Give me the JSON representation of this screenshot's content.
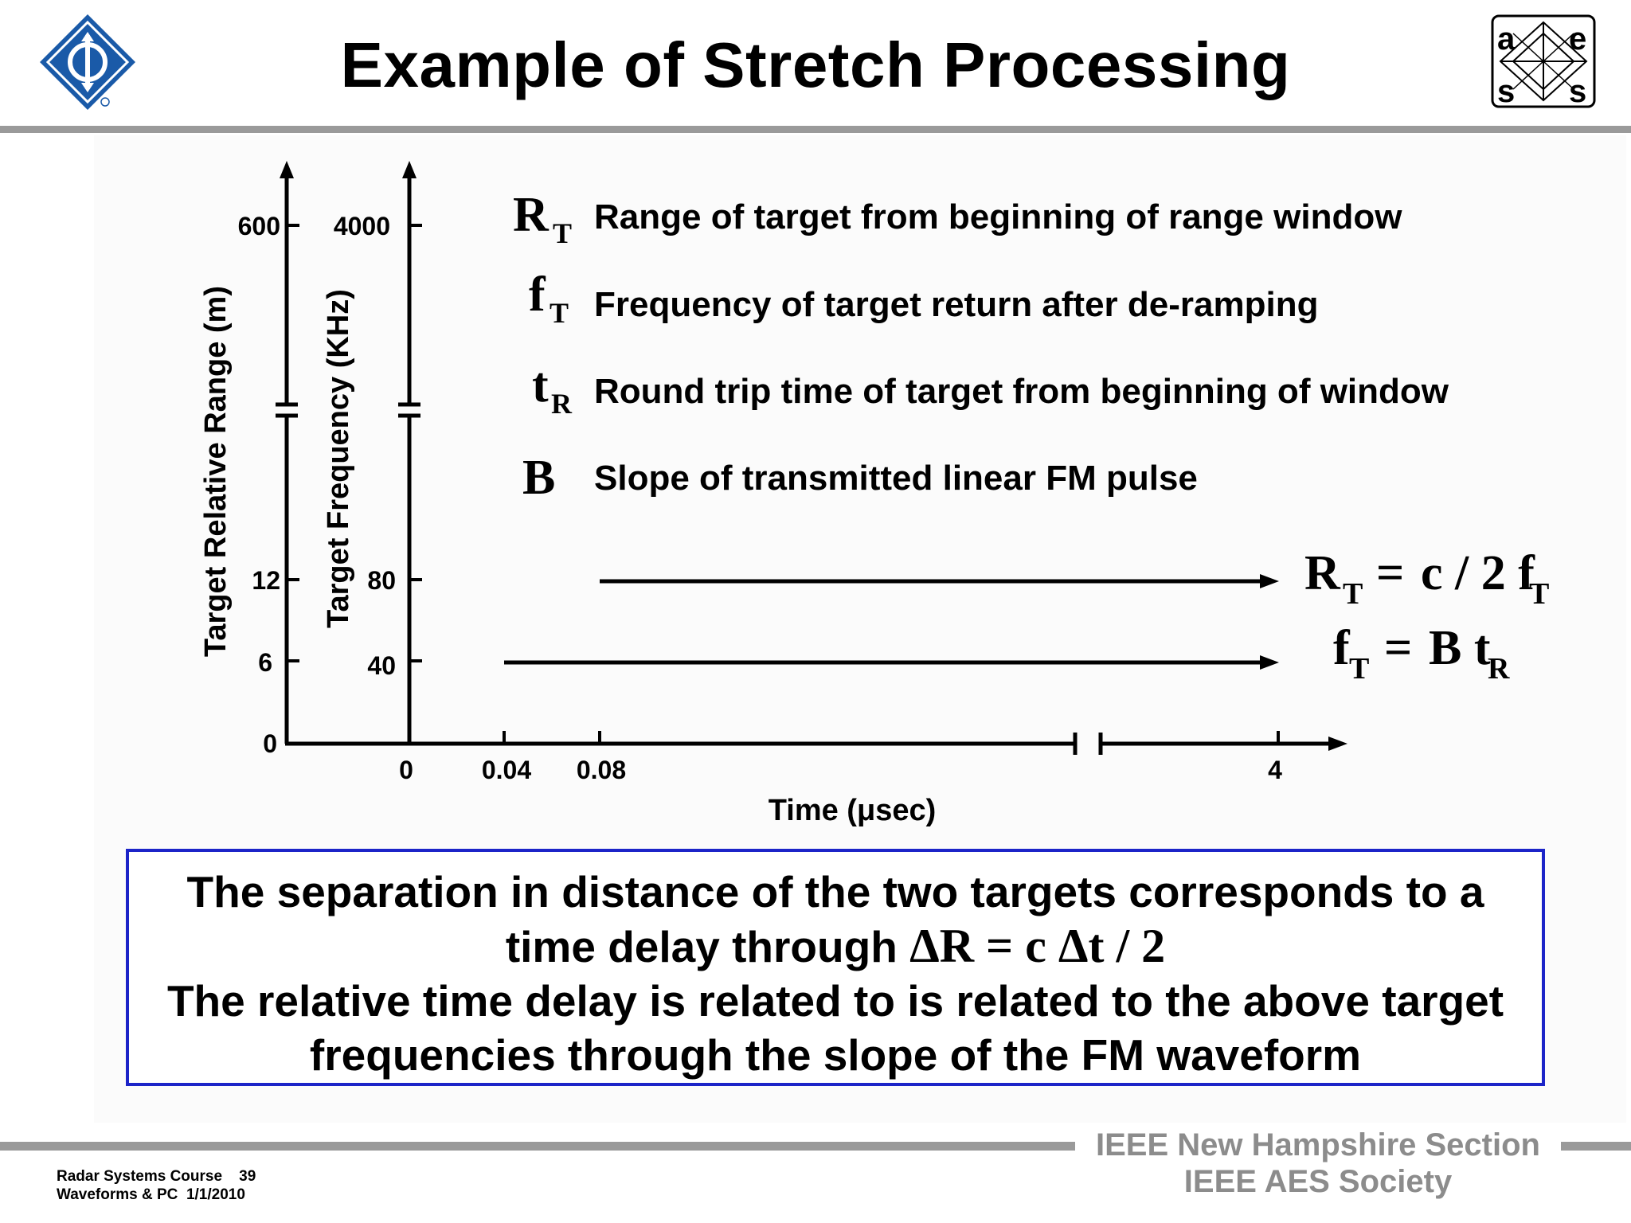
{
  "slide": {
    "title": "Example of Stretch Processing"
  },
  "logos": {
    "left": "ieee-logo",
    "right": {
      "letters": [
        "a",
        "e",
        "s",
        "s"
      ]
    }
  },
  "definitions": [
    {
      "symbol": "R",
      "subscript": "T",
      "text": "Range of target from beginning of range window"
    },
    {
      "symbol": "f",
      "subscript": "T",
      "text": "Frequency of target return after de-ramping"
    },
    {
      "symbol": "t",
      "subscript": "R",
      "text": "Round trip time of target from beginning of window"
    },
    {
      "symbol": "B",
      "subscript": "",
      "text": "Slope of transmitted linear FM pulse"
    }
  ],
  "axes": {
    "range_title": "Target Relative Range (m)",
    "range_ticks": [
      "600",
      "12",
      "6",
      "0"
    ],
    "freq_title": "Target Frequency (KHz)",
    "freq_ticks": [
      "4000",
      "80",
      "40"
    ],
    "time_title": "Time (μsec)",
    "time_ticks": [
      "0",
      "0.04",
      "0.08",
      "4"
    ]
  },
  "formulas": {
    "range": {
      "lhs": "R",
      "lhs_sub": "T",
      "op": "=",
      "rhs": "c / 2 f",
      "rhs_sub": "T"
    },
    "freq": {
      "lhs": "f",
      "lhs_sub": "T",
      "op": "=",
      "rhs": "B t",
      "rhs_sub": "R"
    }
  },
  "summary": {
    "line1": "The separation in distance of the two targets corresponds to a",
    "line2_text": "time delay through",
    "line2_math": "ΔR = c Δt / 2",
    "line3": "The relative time delay is related to is related to the above target",
    "line4": "frequencies through the slope of the FM waveform"
  },
  "footer": {
    "course_line1": "Radar Systems Course    39",
    "course_line2": "Waveforms & PC  1/1/2010",
    "org_line1": "IEEE New Hampshire Section",
    "org_line2": "IEEE AES Society"
  },
  "colors": {
    "rule": "#9a9a9a",
    "summary_border": "#1c24c8",
    "ieee_blue": "#1a5aa8"
  }
}
